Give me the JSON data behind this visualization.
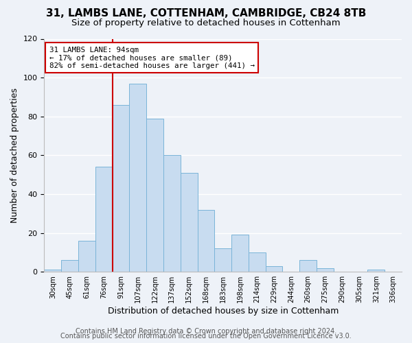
{
  "title1": "31, LAMBS LANE, COTTENHAM, CAMBRIDGE, CB24 8TB",
  "title2": "Size of property relative to detached houses in Cottenham",
  "xlabel": "Distribution of detached houses by size in Cottenham",
  "ylabel": "Number of detached properties",
  "bin_labels": [
    "30sqm",
    "45sqm",
    "61sqm",
    "76sqm",
    "91sqm",
    "107sqm",
    "122sqm",
    "137sqm",
    "152sqm",
    "168sqm",
    "183sqm",
    "198sqm",
    "214sqm",
    "229sqm",
    "244sqm",
    "260sqm",
    "275sqm",
    "290sqm",
    "305sqm",
    "321sqm",
    "336sqm"
  ],
  "bar_values": [
    1,
    6,
    16,
    54,
    86,
    97,
    79,
    60,
    51,
    32,
    12,
    19,
    10,
    3,
    0,
    6,
    2,
    0,
    0,
    1,
    0
  ],
  "bar_color": "#c8dcf0",
  "bar_edge_color": "#7ab4d8",
  "vline_bin_index": 4,
  "annotation_title": "31 LAMBS LANE: 94sqm",
  "annotation_line1": "← 17% of detached houses are smaller (89)",
  "annotation_line2": "82% of semi-detached houses are larger (441) →",
  "annotation_box_color": "#ffffff",
  "annotation_box_edge": "#cc0000",
  "vline_color": "#cc0000",
  "ylim": [
    0,
    120
  ],
  "yticks": [
    0,
    20,
    40,
    60,
    80,
    100,
    120
  ],
  "footer1": "Contains HM Land Registry data © Crown copyright and database right 2024.",
  "footer2": "Contains public sector information licensed under the Open Government Licence v3.0.",
  "background_color": "#eef2f8",
  "plot_background": "#eef2f8",
  "grid_color": "#ffffff",
  "title1_fontsize": 11,
  "title2_fontsize": 9.5,
  "footer_fontsize": 7
}
